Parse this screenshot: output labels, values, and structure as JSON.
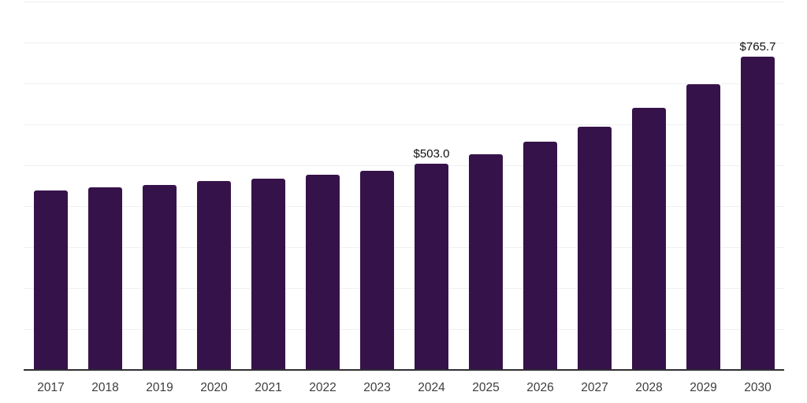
{
  "chart_data": {
    "type": "bar",
    "title": "",
    "xlabel": "",
    "ylabel": "",
    "categories": [
      "2017",
      "2018",
      "2019",
      "2020",
      "2021",
      "2022",
      "2023",
      "2024",
      "2025",
      "2026",
      "2027",
      "2028",
      "2029",
      "2030"
    ],
    "values": [
      438.5,
      446.0,
      452.5,
      461.0,
      466.5,
      476.5,
      486.0,
      503.0,
      527.0,
      558.0,
      595.0,
      640.0,
      698.0,
      765.7
    ],
    "data_labels": [
      "",
      "",
      "",
      "",
      "",
      "",
      "",
      "$503.0",
      "",
      "",
      "",
      "",
      "",
      "$765.7"
    ],
    "ylim": [
      0,
      900
    ],
    "grid_step": 100,
    "grid_on": true,
    "legend_position": "none",
    "bar_color": "#36124a",
    "gridline_color": "#f0f0f1",
    "axis_line_color": "#2f2f33",
    "value_label_color": "#0f0f0f",
    "tick_label_color": "#3d3d3d",
    "background_color": "#ffffff"
  }
}
